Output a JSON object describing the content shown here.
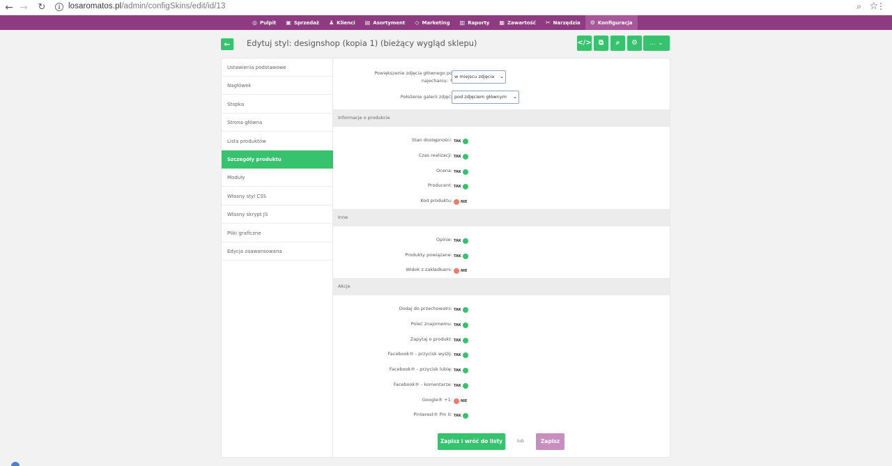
{
  "browser": {
    "url_host": "losaromatos.pl",
    "url_path": "/admin/configSkins/edit/id/13"
  },
  "topnav": [
    {
      "icon": "◎",
      "label": "Pulpit"
    },
    {
      "icon": "▣",
      "label": "Sprzedaż"
    },
    {
      "icon": "♟",
      "label": "Klienci"
    },
    {
      "icon": "▤",
      "label": "Asortyment"
    },
    {
      "icon": "◇",
      "label": "Marketing"
    },
    {
      "icon": "▥",
      "label": "Raporty"
    },
    {
      "icon": "▦",
      "label": "Zawartość"
    },
    {
      "icon": "✂",
      "label": "Narzędzia"
    },
    {
      "icon": "⚙",
      "label": "Konfiguracja"
    }
  ],
  "header": {
    "back_icon": "←",
    "title": "Edytuj styl: designshop (kopia 1) (bieżący wygląd sklepu)",
    "tools": [
      "</>",
      "⧉",
      "⌕",
      "⚙"
    ],
    "more_label": "... ⌄"
  },
  "sidebar": [
    "Ustawienia podstawowe",
    "Nagłówek",
    "Stopka",
    "Strona główna",
    "Lista produktów",
    "Szczegóły produktu",
    "Moduły",
    "Własny styl CSS",
    "Własny skrypt JS",
    "Pliki graficzne",
    "Edycja zaawansowana"
  ],
  "sidebar_active": "Szczegóły produktu",
  "form": {
    "zoom_label": "Powiększenie zdjęcia głównego po najechaniu:",
    "zoom_value": "w miejscu zdjęcia",
    "gallery_label": "Położenie galerii zdjęć:",
    "gallery_value": "pod zdjęciem głównym",
    "caret": "⌄",
    "sections": {
      "info": "Informacje o produkcie",
      "other": "Inne",
      "actions": "Akcje"
    },
    "info_toggles": [
      {
        "label": "Stan dostępności:",
        "state": "TAK"
      },
      {
        "label": "Czas realizacji:",
        "state": "TAK"
      },
      {
        "label": "Ocena:",
        "state": "TAK"
      },
      {
        "label": "Producent:",
        "state": "TAK"
      },
      {
        "label": "Kod produktu:",
        "state": "NIE"
      }
    ],
    "other_toggles": [
      {
        "label": "Opinie:",
        "state": "TAK"
      },
      {
        "label": "Produkty powiązane:",
        "state": "TAK"
      },
      {
        "label": "Widok z zakładkami:",
        "state": "NIE"
      }
    ],
    "action_toggles": [
      {
        "label": "Dodaj do przechowalni:",
        "state": "TAK"
      },
      {
        "label": "Poleć znajomemu:",
        "state": "TAK"
      },
      {
        "label": "Zapytaj o produkt:",
        "state": "TAK"
      },
      {
        "label": "Facebook® - przycisk wyślij:",
        "state": "TAK"
      },
      {
        "label": "Facebook® - przycisk lubię:",
        "state": "TAK"
      },
      {
        "label": "Facebook® - komentarze:",
        "state": "TAK"
      },
      {
        "label": "Google® +1:",
        "state": "NIE"
      },
      {
        "label": "Pinterest® Pin it:",
        "state": "TAK"
      }
    ],
    "save_back": "Zapisz i wróć do listy",
    "or": "lub",
    "save": "Zapisz"
  },
  "colors": {
    "accent_green": "#37c26e",
    "nav_purple": "#8f3b81",
    "toggle_off": "#f07a6b",
    "save_pink": "#c98ec0"
  }
}
